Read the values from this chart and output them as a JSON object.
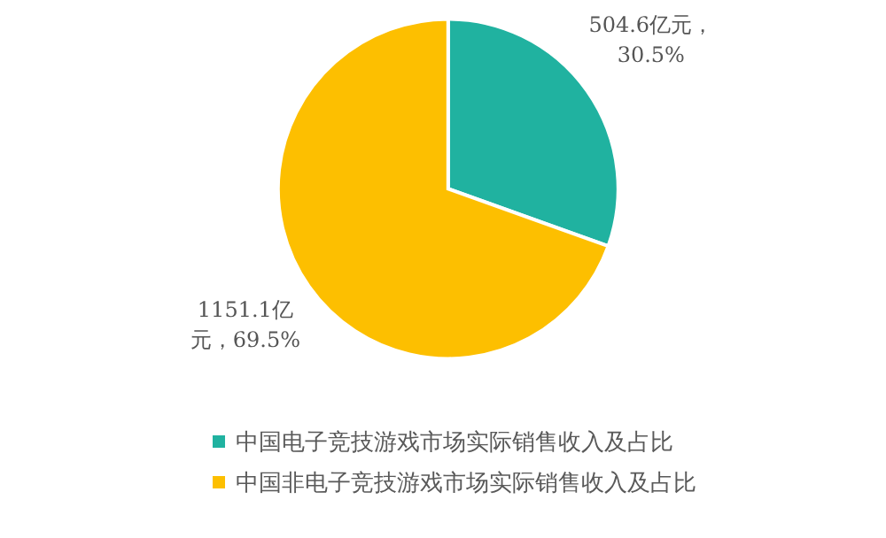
{
  "chart_data": {
    "type": "pie",
    "categories": [
      "中国电子竞技游戏市场实际销售收入及占比",
      "中国非电子竞技游戏市场实际销售收入及占比"
    ],
    "values": [
      504.6,
      1151.1
    ],
    "colors": [
      "#20b2a0",
      "#fdbf00"
    ],
    "value_labels": [
      "504.6亿元，30.5%",
      "1151.1亿元，69.5%"
    ],
    "legend": "bottom"
  }
}
